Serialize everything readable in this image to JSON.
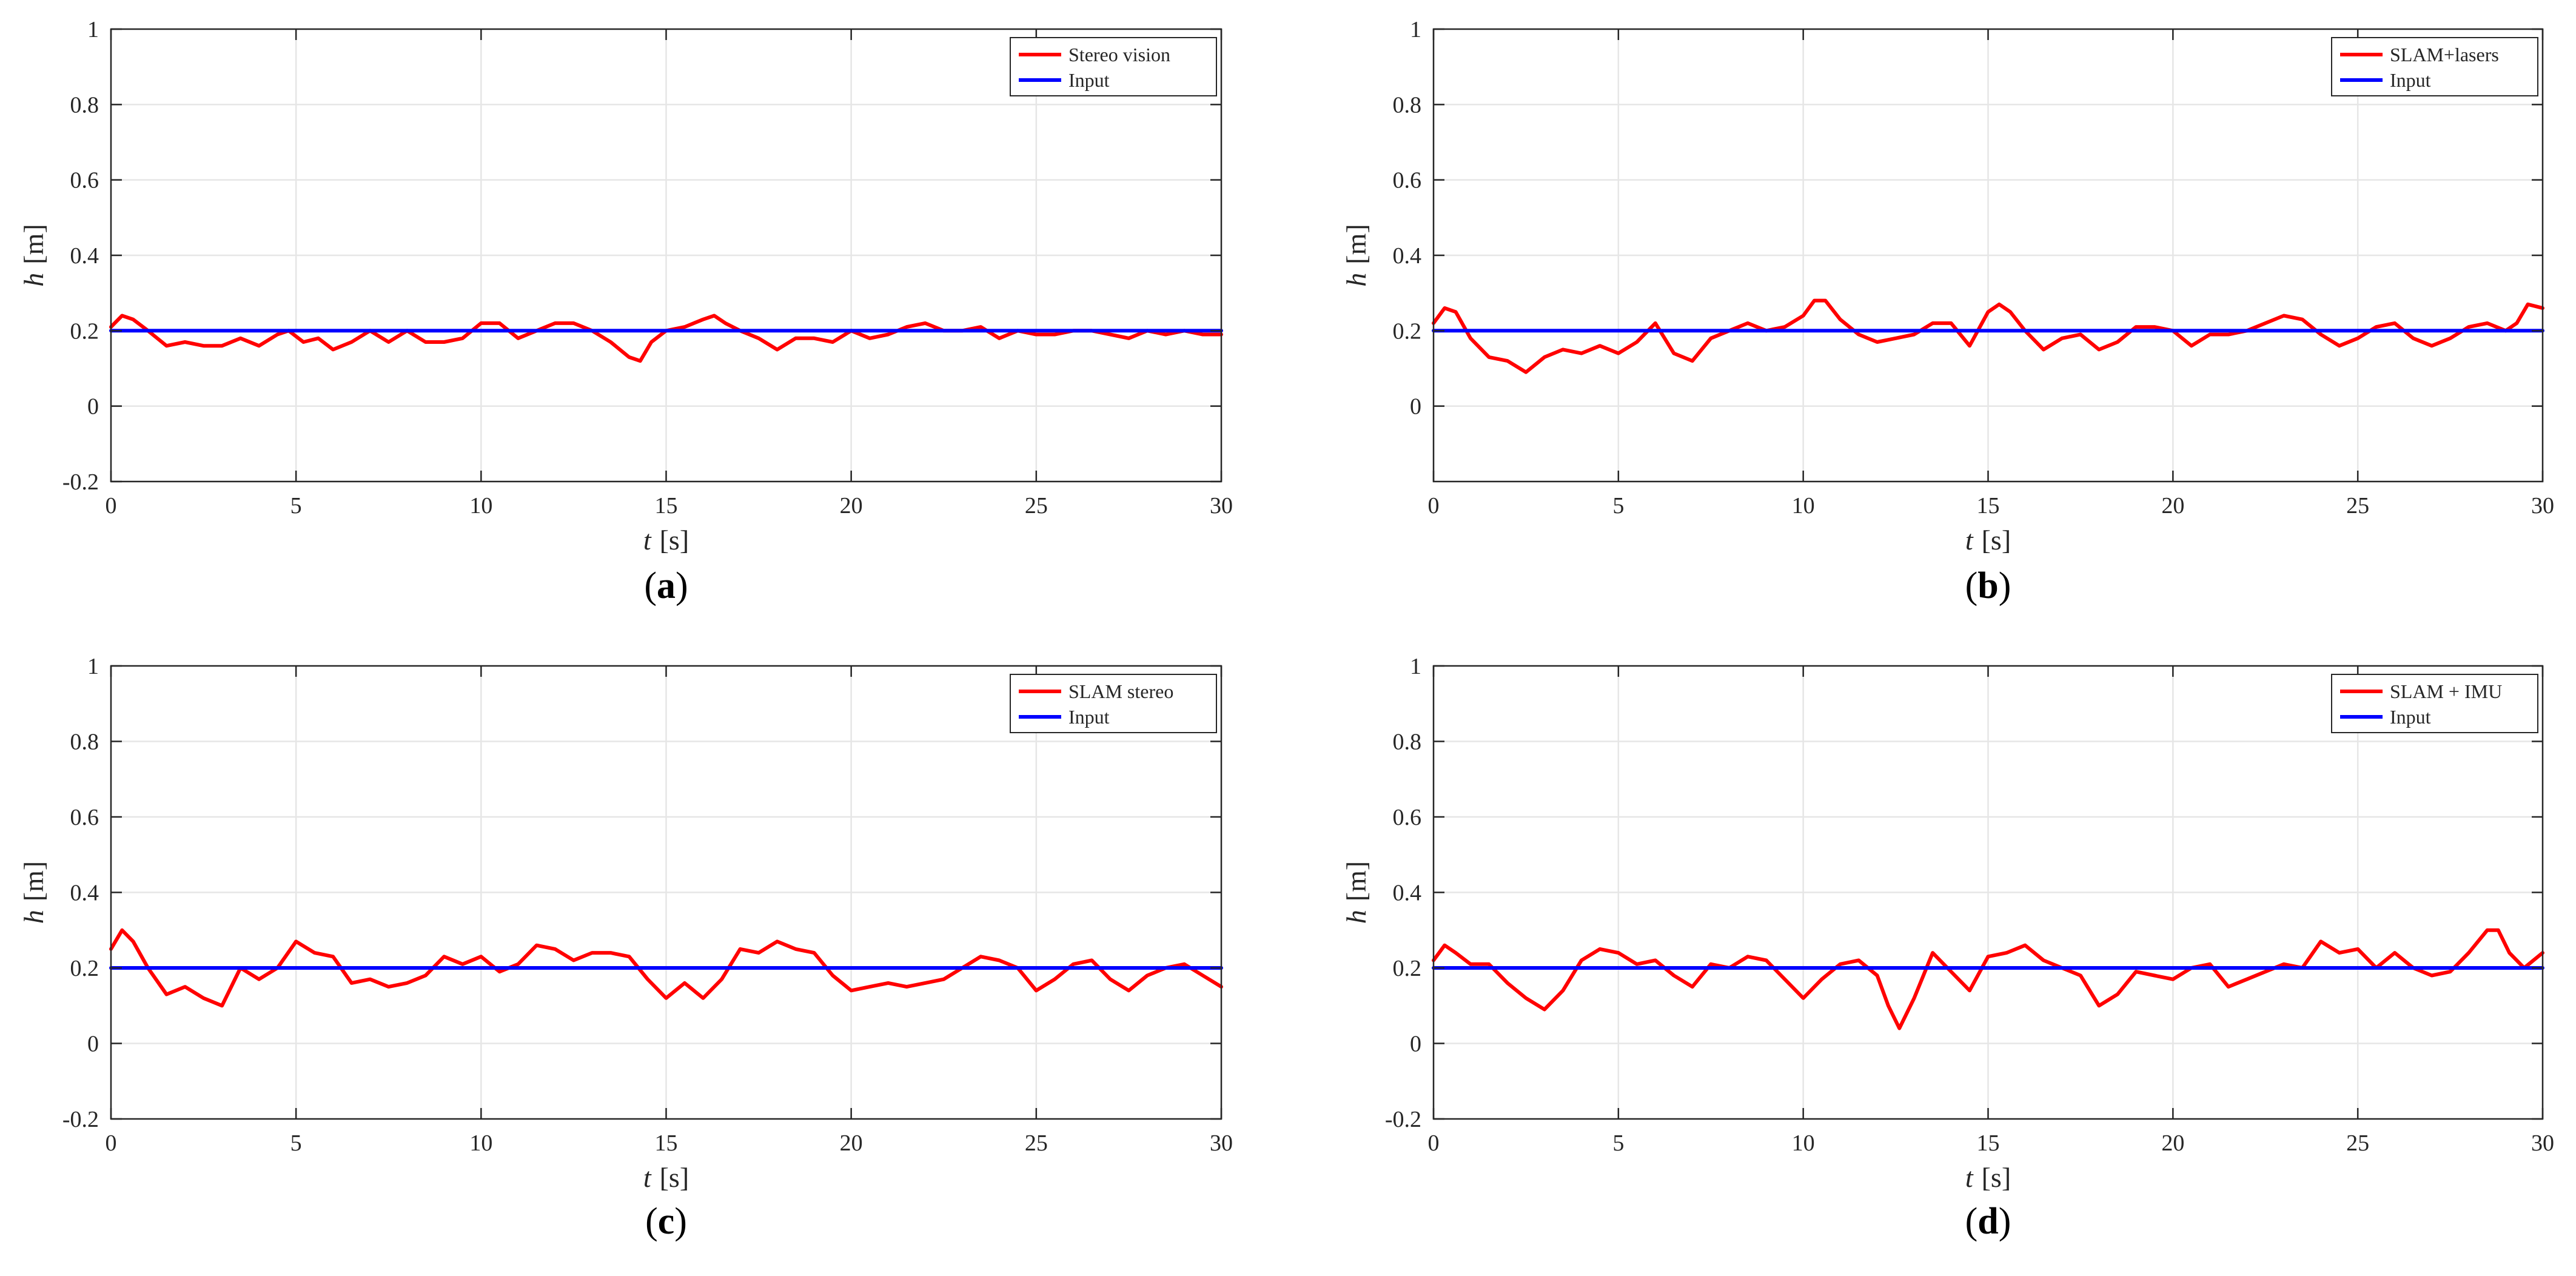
{
  "figure": {
    "colors": {
      "series": "#ff0000",
      "input": "#0000ff",
      "grid": "#e6e6e6",
      "axis": "#262626",
      "text": "#262626"
    }
  },
  "chart_data": [
    {
      "type": "line",
      "label": "a",
      "xlabel_italic": "t",
      "xlabel_unit": "[s]",
      "ylabel_italic": "h",
      "ylabel_unit": "[m]",
      "xlim": [
        0,
        30
      ],
      "ylim": [
        -0.2,
        1
      ],
      "xticks": [
        0,
        5,
        10,
        15,
        20,
        25,
        30
      ],
      "yticks": [
        -0.2,
        0,
        0.2,
        0.4,
        0.6,
        0.8,
        1
      ],
      "ytick_labels": [
        "-0.2",
        "0",
        "0.2",
        "0.4",
        "0.6",
        "0.8",
        "1"
      ],
      "grid": true,
      "legend_position": "top-right",
      "series": [
        {
          "name": "Stereo vision",
          "color": "#ff0000",
          "x": [
            0,
            0.3,
            0.6,
            1.0,
            1.5,
            2.0,
            2.5,
            3.0,
            3.5,
            4.0,
            4.5,
            4.8,
            5.2,
            5.6,
            6.0,
            6.5,
            7.0,
            7.5,
            8.0,
            8.5,
            9.0,
            9.5,
            10.0,
            10.5,
            11.0,
            11.5,
            12.0,
            12.5,
            13.0,
            13.5,
            14.0,
            14.3,
            14.6,
            15.0,
            15.5,
            16.0,
            16.3,
            16.6,
            17.0,
            17.5,
            18.0,
            18.5,
            19.0,
            19.5,
            20.0,
            20.5,
            21.0,
            21.5,
            22.0,
            22.5,
            23.0,
            23.5,
            24.0,
            24.5,
            25.0,
            25.5,
            26.0,
            26.5,
            27.0,
            27.5,
            28.0,
            28.5,
            29.0,
            29.5,
            30.0
          ],
          "y": [
            0.21,
            0.24,
            0.23,
            0.2,
            0.16,
            0.17,
            0.16,
            0.16,
            0.18,
            0.16,
            0.19,
            0.2,
            0.17,
            0.18,
            0.15,
            0.17,
            0.2,
            0.17,
            0.2,
            0.17,
            0.17,
            0.18,
            0.22,
            0.22,
            0.18,
            0.2,
            0.22,
            0.22,
            0.2,
            0.17,
            0.13,
            0.12,
            0.17,
            0.2,
            0.21,
            0.23,
            0.24,
            0.22,
            0.2,
            0.18,
            0.15,
            0.18,
            0.18,
            0.17,
            0.2,
            0.18,
            0.19,
            0.21,
            0.22,
            0.2,
            0.2,
            0.21,
            0.18,
            0.2,
            0.19,
            0.19,
            0.2,
            0.2,
            0.19,
            0.18,
            0.2,
            0.19,
            0.2,
            0.19,
            0.19
          ]
        },
        {
          "name": "Input",
          "color": "#0000ff",
          "x": [
            0,
            30
          ],
          "y": [
            0.2,
            0.2
          ]
        }
      ]
    },
    {
      "type": "line",
      "label": "b",
      "xlabel_italic": "t",
      "xlabel_unit": "[s]",
      "ylabel_italic": "h",
      "ylabel_unit": "[m]",
      "xlim": [
        0,
        30
      ],
      "ylim": [
        -0.2,
        1
      ],
      "xticks": [
        0,
        5,
        10,
        15,
        20,
        25,
        30
      ],
      "yticks": [
        0,
        0.2,
        0.4,
        0.6,
        0.8,
        1
      ],
      "ytick_labels": [
        "0",
        "0.2",
        "0.4",
        "0.6",
        "0.8",
        "1"
      ],
      "grid": true,
      "legend_position": "top-right",
      "series": [
        {
          "name": "SLAM+lasers",
          "color": "#ff0000",
          "x": [
            0,
            0.3,
            0.6,
            1.0,
            1.5,
            2.0,
            2.5,
            3.0,
            3.5,
            4.0,
            4.5,
            5.0,
            5.5,
            6.0,
            6.5,
            7.0,
            7.5,
            8.0,
            8.5,
            9.0,
            9.5,
            10.0,
            10.3,
            10.6,
            11.0,
            11.5,
            12.0,
            12.5,
            13.0,
            13.5,
            14.0,
            14.5,
            15.0,
            15.3,
            15.6,
            16.0,
            16.5,
            17.0,
            17.5,
            18.0,
            18.5,
            19.0,
            19.5,
            20.0,
            20.5,
            21.0,
            21.5,
            22.0,
            22.5,
            23.0,
            23.5,
            24.0,
            24.5,
            25.0,
            25.5,
            26.0,
            26.5,
            27.0,
            27.5,
            28.0,
            28.5,
            29.0,
            29.3,
            29.6,
            30.0
          ],
          "y": [
            0.22,
            0.26,
            0.25,
            0.18,
            0.13,
            0.12,
            0.09,
            0.13,
            0.15,
            0.14,
            0.16,
            0.14,
            0.17,
            0.22,
            0.14,
            0.12,
            0.18,
            0.2,
            0.22,
            0.2,
            0.21,
            0.24,
            0.28,
            0.28,
            0.23,
            0.19,
            0.17,
            0.18,
            0.19,
            0.22,
            0.22,
            0.16,
            0.25,
            0.27,
            0.25,
            0.2,
            0.15,
            0.18,
            0.19,
            0.15,
            0.17,
            0.21,
            0.21,
            0.2,
            0.16,
            0.19,
            0.19,
            0.2,
            0.22,
            0.24,
            0.23,
            0.19,
            0.16,
            0.18,
            0.21,
            0.22,
            0.18,
            0.16,
            0.18,
            0.21,
            0.22,
            0.2,
            0.22,
            0.27,
            0.26
          ]
        },
        {
          "name": "Input",
          "color": "#0000ff",
          "x": [
            0,
            30
          ],
          "y": [
            0.2,
            0.2
          ]
        }
      ]
    },
    {
      "type": "line",
      "label": "c",
      "xlabel_italic": "t",
      "xlabel_unit": "[s]",
      "ylabel_italic": "h",
      "ylabel_unit": "[m]",
      "xlim": [
        0,
        30
      ],
      "ylim": [
        -0.2,
        1
      ],
      "xticks": [
        0,
        5,
        10,
        15,
        20,
        25,
        30
      ],
      "yticks": [
        -0.2,
        0,
        0.2,
        0.4,
        0.6,
        0.8,
        1
      ],
      "ytick_labels": [
        "-0.2",
        "0",
        "0.2",
        "0.4",
        "0.6",
        "0.8",
        "1"
      ],
      "grid": true,
      "legend_position": "top-right",
      "series": [
        {
          "name": "SLAM stereo",
          "color": "#ff0000",
          "x": [
            0,
            0.3,
            0.6,
            1.0,
            1.5,
            2.0,
            2.5,
            3.0,
            3.5,
            4.0,
            4.5,
            5.0,
            5.5,
            6.0,
            6.5,
            7.0,
            7.5,
            8.0,
            8.5,
            9.0,
            9.5,
            10.0,
            10.5,
            11.0,
            11.5,
            12.0,
            12.5,
            13.0,
            13.5,
            14.0,
            14.5,
            15.0,
            15.5,
            16.0,
            16.5,
            17.0,
            17.5,
            18.0,
            18.5,
            19.0,
            19.5,
            20.0,
            20.5,
            21.0,
            21.5,
            22.0,
            22.5,
            23.0,
            23.5,
            24.0,
            24.5,
            25.0,
            25.5,
            26.0,
            26.5,
            27.0,
            27.5,
            28.0,
            28.5,
            29.0,
            29.5,
            30.0
          ],
          "y": [
            0.25,
            0.3,
            0.27,
            0.2,
            0.13,
            0.15,
            0.12,
            0.1,
            0.2,
            0.17,
            0.2,
            0.27,
            0.24,
            0.23,
            0.16,
            0.17,
            0.15,
            0.16,
            0.18,
            0.23,
            0.21,
            0.23,
            0.19,
            0.21,
            0.26,
            0.25,
            0.22,
            0.24,
            0.24,
            0.23,
            0.17,
            0.12,
            0.16,
            0.12,
            0.17,
            0.25,
            0.24,
            0.27,
            0.25,
            0.24,
            0.18,
            0.14,
            0.15,
            0.16,
            0.15,
            0.16,
            0.17,
            0.2,
            0.23,
            0.22,
            0.2,
            0.14,
            0.17,
            0.21,
            0.22,
            0.17,
            0.14,
            0.18,
            0.2,
            0.21,
            0.18,
            0.15
          ]
        },
        {
          "name": "Input",
          "color": "#0000ff",
          "x": [
            0,
            30
          ],
          "y": [
            0.2,
            0.2
          ]
        }
      ]
    },
    {
      "type": "line",
      "label": "d",
      "xlabel_italic": "t",
      "xlabel_unit": "[s]",
      "ylabel_italic": "h",
      "ylabel_unit": "[m]",
      "xlim": [
        0,
        30
      ],
      "ylim": [
        -0.2,
        1
      ],
      "xticks": [
        0,
        5,
        10,
        15,
        20,
        25,
        30
      ],
      "yticks": [
        -0.2,
        0,
        0.2,
        0.4,
        0.6,
        0.8,
        1
      ],
      "ytick_labels": [
        "-0.2",
        "0",
        "0.2",
        "0.4",
        "0.6",
        "0.8",
        "1"
      ],
      "grid": true,
      "legend_position": "top-right",
      "series": [
        {
          "name": "SLAM + IMU",
          "color": "#ff0000",
          "x": [
            0,
            0.3,
            0.6,
            1.0,
            1.5,
            2.0,
            2.5,
            3.0,
            3.5,
            4.0,
            4.5,
            5.0,
            5.5,
            6.0,
            6.5,
            7.0,
            7.5,
            8.0,
            8.5,
            9.0,
            9.5,
            10.0,
            10.5,
            11.0,
            11.5,
            12.0,
            12.3,
            12.6,
            13.0,
            13.5,
            14.0,
            14.5,
            15.0,
            15.5,
            16.0,
            16.5,
            17.0,
            17.5,
            18.0,
            18.5,
            19.0,
            19.5,
            20.0,
            20.5,
            21.0,
            21.5,
            22.0,
            22.5,
            23.0,
            23.5,
            24.0,
            24.5,
            25.0,
            25.5,
            26.0,
            26.5,
            27.0,
            27.5,
            28.0,
            28.5,
            28.8,
            29.1,
            29.5,
            30.0
          ],
          "y": [
            0.22,
            0.26,
            0.24,
            0.21,
            0.21,
            0.16,
            0.12,
            0.09,
            0.14,
            0.22,
            0.25,
            0.24,
            0.21,
            0.22,
            0.18,
            0.15,
            0.21,
            0.2,
            0.23,
            0.22,
            0.17,
            0.12,
            0.17,
            0.21,
            0.22,
            0.18,
            0.1,
            0.04,
            0.12,
            0.24,
            0.19,
            0.14,
            0.23,
            0.24,
            0.26,
            0.22,
            0.2,
            0.18,
            0.1,
            0.13,
            0.19,
            0.18,
            0.17,
            0.2,
            0.21,
            0.15,
            0.17,
            0.19,
            0.21,
            0.2,
            0.27,
            0.24,
            0.25,
            0.2,
            0.24,
            0.2,
            0.18,
            0.19,
            0.24,
            0.3,
            0.3,
            0.24,
            0.2,
            0.24
          ]
        },
        {
          "name": "Input",
          "color": "#0000ff",
          "x": [
            0,
            30
          ],
          "y": [
            0.2,
            0.2
          ]
        }
      ]
    }
  ]
}
